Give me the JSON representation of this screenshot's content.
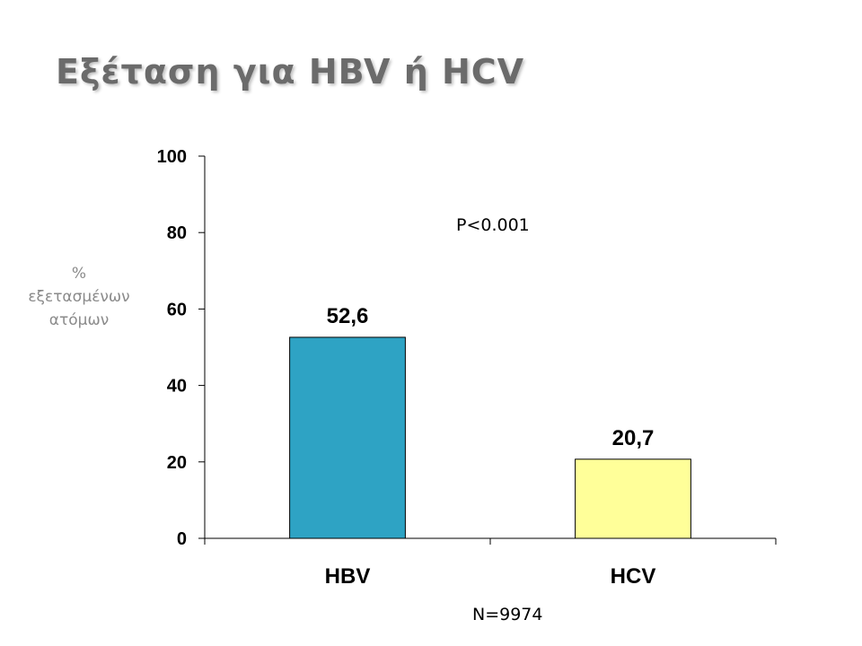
{
  "slide": {
    "title": "Εξέταση για HBV ή HCV",
    "ylabel_lines": [
      "%",
      "εξετασμένων",
      "ατόμων"
    ],
    "p_value": "P<0.001",
    "n_value": "N=9974"
  },
  "chart_data": {
    "type": "bar",
    "categories": [
      "HBV",
      "HCV"
    ],
    "values": [
      52.6,
      20.7
    ],
    "data_labels": [
      "52,6",
      "20,7"
    ],
    "yticks": [
      0,
      20,
      40,
      60,
      80,
      100
    ],
    "ylim": [
      0,
      100
    ],
    "ylabel": "% εξετασμένων ατόμων",
    "grid": false,
    "bar_colors": [
      "#2ea3c4",
      "#ffff99"
    ],
    "bar_border_color": "#000000"
  },
  "colors": {
    "title": "#6b6b6b",
    "ylabel": "#8a8a8a"
  }
}
